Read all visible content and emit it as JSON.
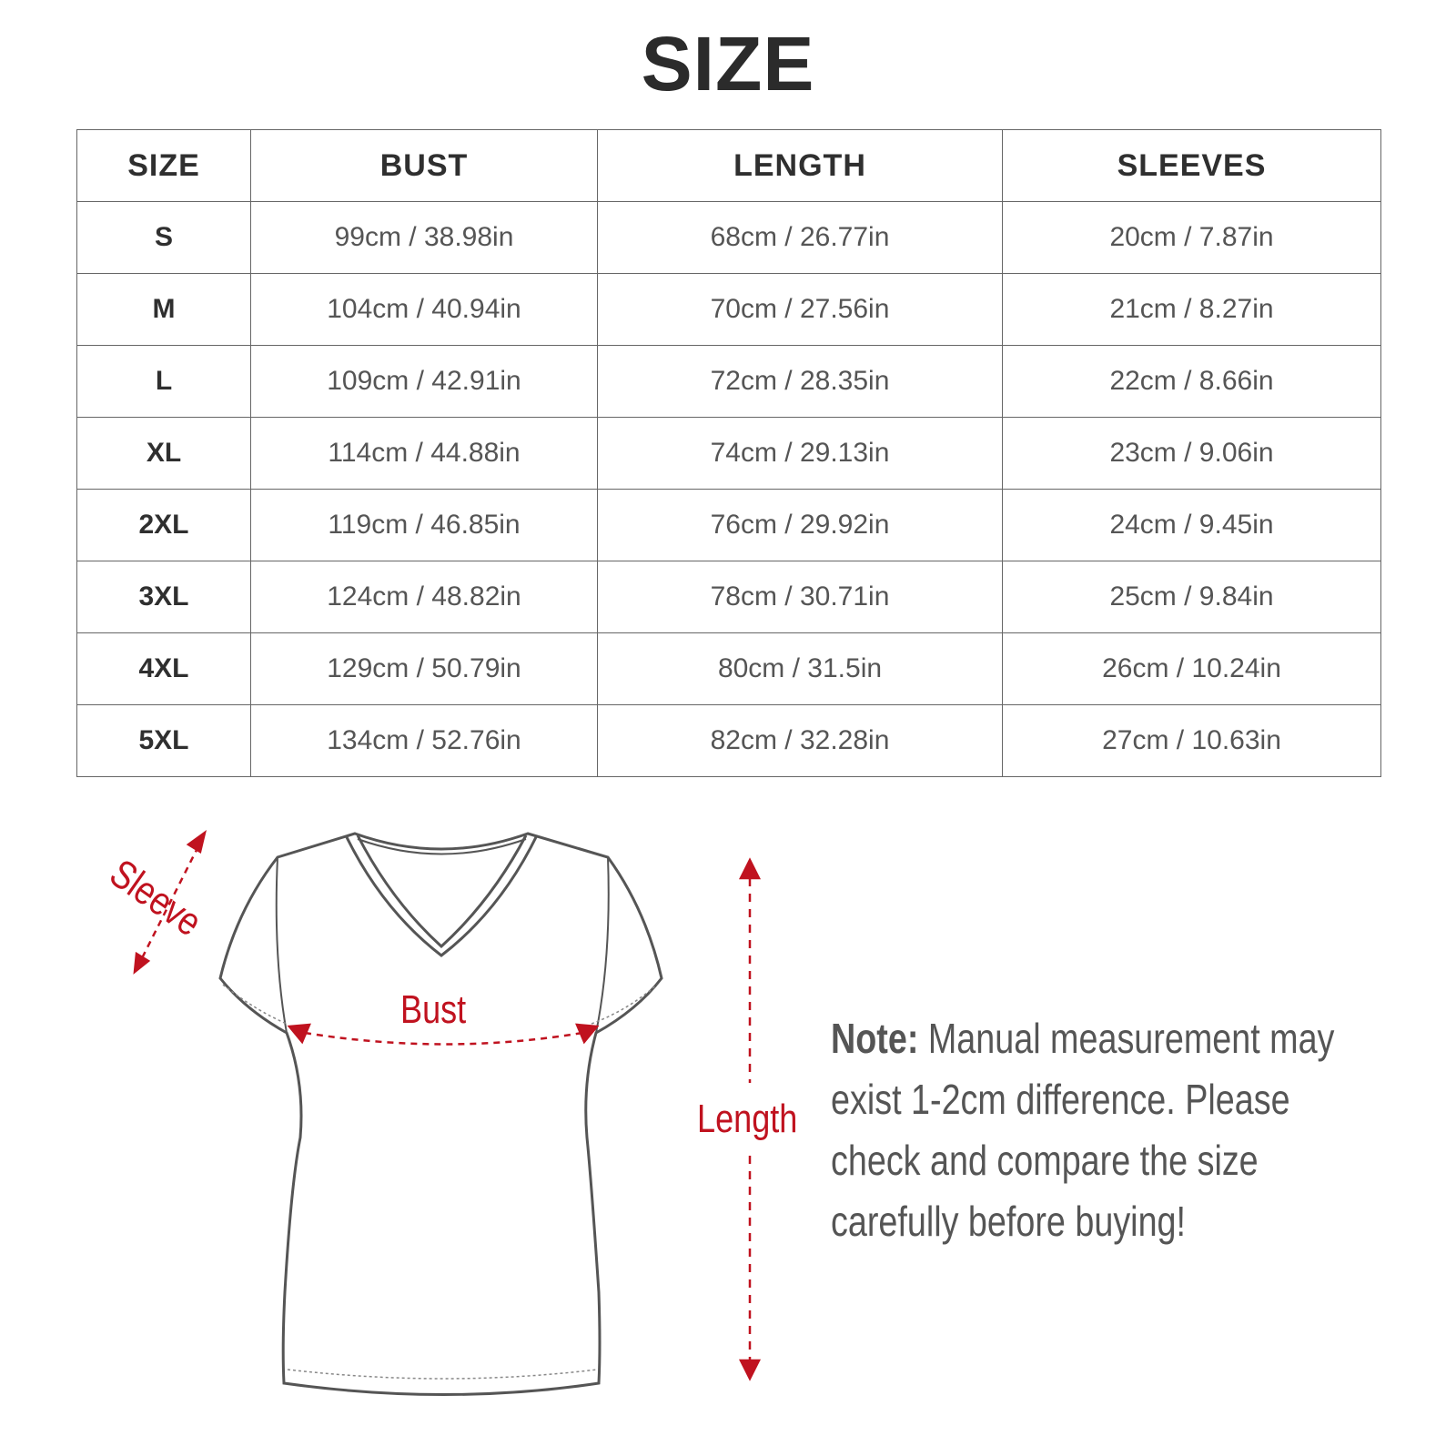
{
  "title": "SIZE",
  "table": {
    "headers": [
      "SIZE",
      "BUST",
      "LENGTH",
      "SLEEVES"
    ],
    "rows": [
      [
        "S",
        "99cm / 38.98in",
        "68cm / 26.77in",
        "20cm / 7.87in"
      ],
      [
        "M",
        "104cm / 40.94in",
        "70cm / 27.56in",
        "21cm / 8.27in"
      ],
      [
        "L",
        "109cm / 42.91in",
        "72cm / 28.35in",
        "22cm / 8.66in"
      ],
      [
        "XL",
        "114cm / 44.88in",
        "74cm / 29.13in",
        "23cm / 9.06in"
      ],
      [
        "2XL",
        "119cm / 46.85in",
        "76cm / 29.92in",
        "24cm / 9.45in"
      ],
      [
        "3XL",
        "124cm / 48.82in",
        "78cm / 30.71in",
        "25cm / 9.84in"
      ],
      [
        "4XL",
        "129cm / 50.79in",
        "80cm / 31.5in",
        "26cm / 10.24in"
      ],
      [
        "5XL",
        "134cm / 52.76in",
        "82cm / 32.28in",
        "27cm / 10.63in"
      ]
    ]
  },
  "diagram": {
    "sleeve_label": "Sleeve",
    "bust_label": "Bust",
    "length_label": "Length",
    "accent_color": "#c0121f"
  },
  "note": {
    "label": "Note:",
    "text": " Manual measurement may exist 1-2cm difference. Please check and compare the size carefully before buying!"
  }
}
